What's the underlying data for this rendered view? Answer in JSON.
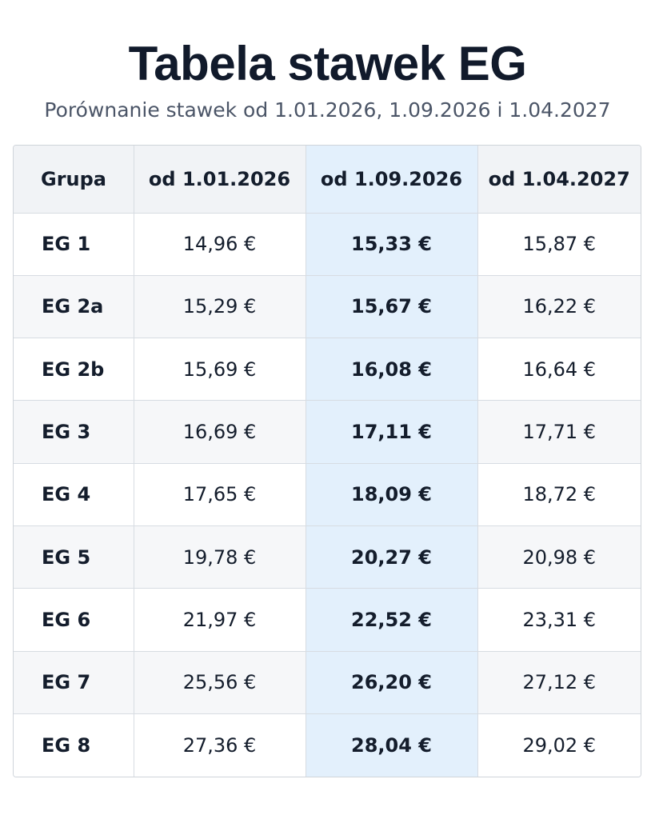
{
  "title": "Tabela stawek EG",
  "subtitle": "Porównanie stawek od 1.01.2026, 1.09.2026 i 1.04.2027",
  "colors": {
    "highlight_column": "#e3f0fc",
    "header_background": "#f1f3f6",
    "alt_row_background": "#f6f7f9"
  },
  "table": {
    "headers": [
      "Grupa",
      "od 1.01.2026",
      "od 1.09.2026",
      "od 1.04.2027"
    ],
    "highlighted_column": "od 1.09.2026",
    "rows": [
      {
        "group": "EG 1",
        "r2026_01": "14,96 €",
        "r2026_09": "15,33 €",
        "r2027_04": "15,87 €"
      },
      {
        "group": "EG 2a",
        "r2026_01": "15,29 €",
        "r2026_09": "15,67 €",
        "r2027_04": "16,22 €"
      },
      {
        "group": "EG 2b",
        "r2026_01": "15,69 €",
        "r2026_09": "16,08 €",
        "r2027_04": "16,64 €"
      },
      {
        "group": "EG 3",
        "r2026_01": "16,69 €",
        "r2026_09": "17,11 €",
        "r2027_04": "17,71 €"
      },
      {
        "group": "EG 4",
        "r2026_01": "17,65 €",
        "r2026_09": "18,09 €",
        "r2027_04": "18,72 €"
      },
      {
        "group": "EG 5",
        "r2026_01": "19,78 €",
        "r2026_09": "20,27 €",
        "r2027_04": "20,98 €"
      },
      {
        "group": "EG 6",
        "r2026_01": "21,97 €",
        "r2026_09": "22,52 €",
        "r2027_04": "23,31 €"
      },
      {
        "group": "EG 7",
        "r2026_01": "25,56 €",
        "r2026_09": "26,20 €",
        "r2027_04": "27,12 €"
      },
      {
        "group": "EG 8",
        "r2026_01": "27,36 €",
        "r2026_09": "28,04 €",
        "r2027_04": "29,02 €"
      }
    ]
  }
}
